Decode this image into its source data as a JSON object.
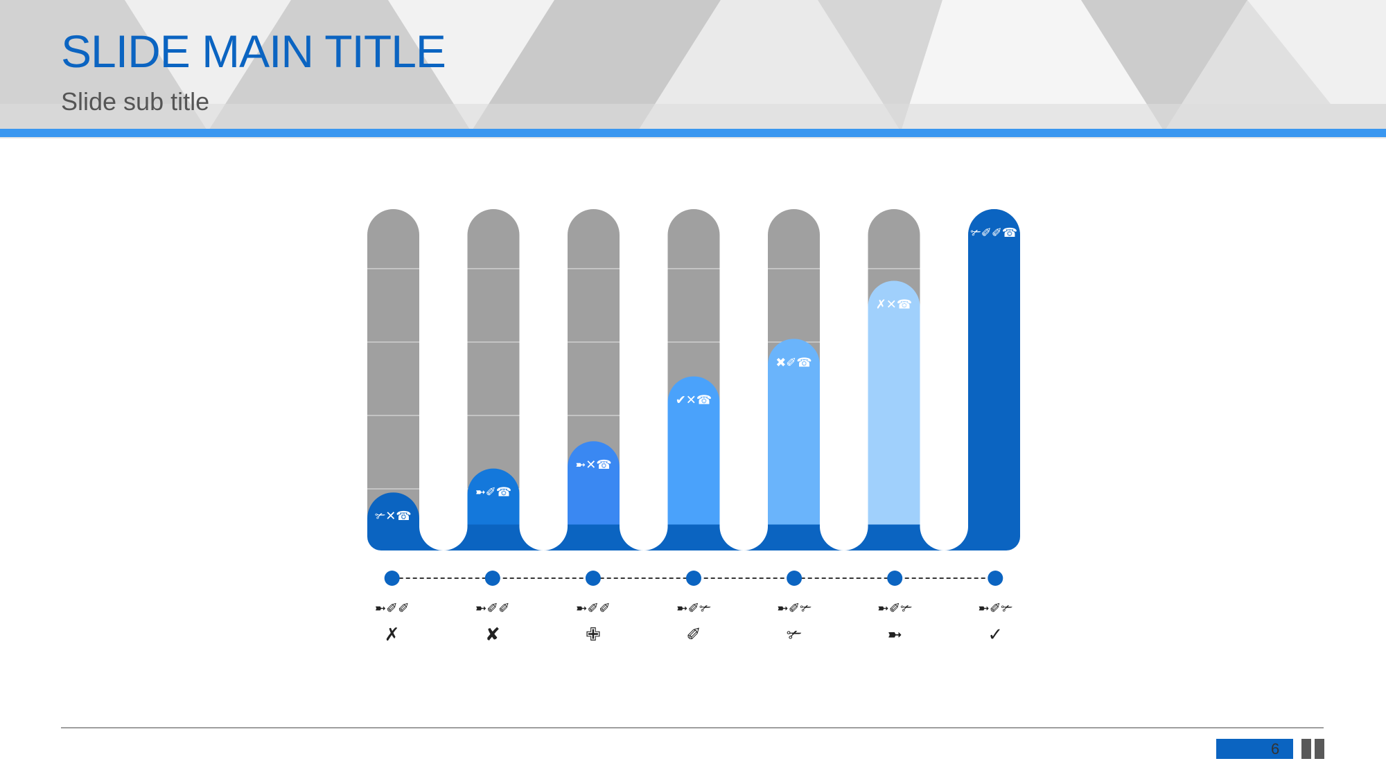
{
  "slide": {
    "title": "SLIDE MAIN TITLE",
    "subtitle": "Slide sub title",
    "page_number": "6"
  },
  "colors": {
    "accent": "#3a97f0",
    "title": "#0b64c1",
    "track": "#a0a0a0",
    "dot": "#0b64c1"
  },
  "chart_data": {
    "type": "bar",
    "ylim": [
      0,
      100
    ],
    "grid": true,
    "categories": [
      {
        "label_line1": "➼✐✐",
        "label_line2": "✗"
      },
      {
        "label_line1": "➼✐✐",
        "label_line2": "✘"
      },
      {
        "label_line1": "➼✐✐",
        "label_line2": "✙"
      },
      {
        "label_line1": "➼✐✃",
        "label_line2": "✐"
      },
      {
        "label_line1": "➼✐✃",
        "label_line2": "✃"
      },
      {
        "label_line1": "➼✐✃",
        "label_line2": "➼"
      },
      {
        "label_line1": "➼✐✃",
        "label_line2": "✓"
      }
    ],
    "values": [
      17,
      24,
      32,
      51,
      62,
      79,
      100
    ],
    "value_labels": [
      "✃✕☎",
      "➼✐☎",
      "➼✕☎",
      "✔✕☎",
      "✖✐☎",
      "✗✕☎",
      "✃✐✐☎"
    ],
    "bar_colors": [
      "#0b64c1",
      "#1478db",
      "#3a88f2",
      "#4aa2fb",
      "#6ab4fb",
      "#a0d0fc",
      "#0b64c1"
    ]
  }
}
